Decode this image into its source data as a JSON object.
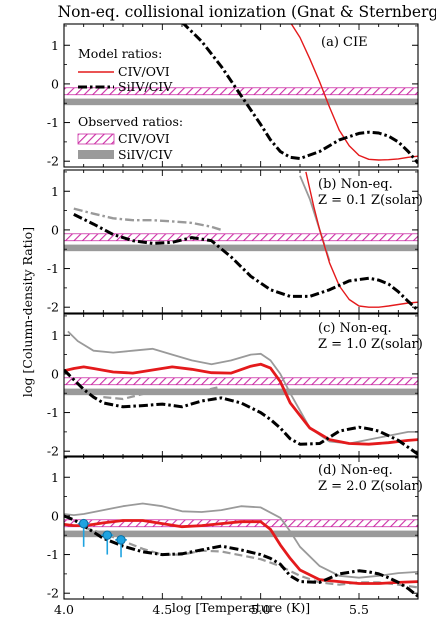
{
  "chart_data": {
    "type": "line",
    "title": "Non-eq. collisional ionization (Gnat & Sternberg)",
    "xlabel": "log [Temperature (K)]",
    "ylabel": "log [Column-density Ratio]",
    "xlim": [
      4.0,
      5.8
    ],
    "ylim": [
      -2.15,
      1.55
    ],
    "xticks": [
      "4.0",
      "4.5",
      "5.0",
      "5.5"
    ],
    "yticks": [
      "1",
      "0",
      "-1",
      "-2"
    ],
    "colors": {
      "civ_ovi": "#e41a1c",
      "siiv_civ": "#000000",
      "gray_model": "#9a9a9a",
      "band_hatch": "#cc2fa6",
      "band_gray": "#9a9a9a"
    },
    "legend": {
      "model_header": "Model ratios:",
      "model_entries": [
        "CIV/OVI",
        "SiIV/CIV"
      ],
      "observed_header": "Observed ratios:",
      "observed_entries": [
        "CIV/OVI",
        "SiIV/CIV"
      ],
      "placement": "upper-left of panel (a)"
    },
    "observed_bands": {
      "civ_ovi": [
        -0.28,
        -0.1
      ],
      "siiv_civ": [
        -0.55,
        -0.38
      ]
    },
    "panels": [
      {
        "label": "(a) CIE",
        "label2": "",
        "series": [
          {
            "name": "CIV/OVI",
            "style": "red-solid",
            "x": [
              5.15,
              5.2,
              5.25,
              5.3,
              5.35,
              5.4,
              5.45,
              5.5,
              5.55,
              5.6,
              5.65,
              5.7,
              5.75,
              5.8
            ],
            "y": [
              1.6,
              1.2,
              0.65,
              0.05,
              -0.6,
              -1.2,
              -1.6,
              -1.85,
              -1.95,
              -1.97,
              -1.96,
              -1.94,
              -1.9,
              -1.87
            ]
          },
          {
            "name": "SiIV/CIV",
            "style": "black-dashdot",
            "x": [
              4.6,
              4.7,
              4.8,
              4.9,
              5.0,
              5.05,
              5.1,
              5.15,
              5.2,
              5.3,
              5.4,
              5.5,
              5.55,
              5.6,
              5.65,
              5.7,
              5.75,
              5.8
            ],
            "y": [
              1.6,
              1.1,
              0.45,
              -0.3,
              -1.05,
              -1.45,
              -1.75,
              -1.9,
              -1.93,
              -1.75,
              -1.45,
              -1.28,
              -1.25,
              -1.27,
              -1.35,
              -1.5,
              -1.75,
              -2.05
            ]
          }
        ]
      },
      {
        "label": "(b) Non-eq.",
        "label2": "Z = 0.1 Z(solar)",
        "series": [
          {
            "name": "gray-solid",
            "style": "gray-solid",
            "x": [
              5.2,
              5.25,
              5.3,
              5.35
            ],
            "y": [
              1.4,
              0.8,
              0.0,
              -0.8
            ]
          },
          {
            "name": "gray-dashdot",
            "style": "gray-dashdot",
            "x": [
              4.05,
              4.15,
              4.25,
              4.35,
              4.45,
              4.55,
              4.65,
              4.75,
              4.8
            ],
            "y": [
              0.55,
              0.42,
              0.3,
              0.25,
              0.25,
              0.22,
              0.18,
              0.08,
              0.0
            ]
          },
          {
            "name": "CIV/OVI",
            "style": "red-solid",
            "x": [
              5.23,
              5.27,
              5.3,
              5.35,
              5.4,
              5.45,
              5.5,
              5.55,
              5.6,
              5.65,
              5.7,
              5.75,
              5.8
            ],
            "y": [
              1.5,
              0.6,
              0.0,
              -0.85,
              -1.45,
              -1.8,
              -1.97,
              -2.0,
              -2.0,
              -1.97,
              -1.93,
              -1.89,
              -1.87
            ]
          },
          {
            "name": "SiIV/CIV",
            "style": "black-dashdot",
            "x": [
              4.05,
              4.15,
              4.25,
              4.35,
              4.45,
              4.55,
              4.65,
              4.75,
              4.85,
              4.95,
              5.05,
              5.15,
              5.25,
              5.35,
              5.45,
              5.55,
              5.6,
              5.65,
              5.7,
              5.75,
              5.8
            ],
            "y": [
              0.4,
              0.15,
              -0.12,
              -0.28,
              -0.35,
              -0.32,
              -0.2,
              -0.28,
              -0.7,
              -1.2,
              -1.55,
              -1.72,
              -1.72,
              -1.55,
              -1.32,
              -1.25,
              -1.3,
              -1.4,
              -1.6,
              -1.85,
              -2.08
            ]
          }
        ]
      },
      {
        "label": "(c) Non-eq.",
        "label2": "Z = 1.0 Z(solar)",
        "series": [
          {
            "name": "gray-solid",
            "style": "gray-solid",
            "x": [
              4.02,
              4.07,
              4.15,
              4.25,
              4.35,
              4.45,
              4.55,
              4.65,
              4.75,
              4.85,
              4.95,
              5.0,
              5.05,
              5.1,
              5.15,
              5.25,
              5.35,
              5.45,
              5.55,
              5.65,
              5.75,
              5.8
            ],
            "y": [
              1.1,
              0.85,
              0.6,
              0.55,
              0.6,
              0.65,
              0.5,
              0.35,
              0.25,
              0.35,
              0.5,
              0.52,
              0.35,
              0.0,
              -0.5,
              -1.4,
              -1.75,
              -1.8,
              -1.7,
              -1.6,
              -1.5,
              -1.5
            ]
          },
          {
            "name": "gray-dashed",
            "style": "gray-dashed",
            "x": [
              4.2,
              4.3,
              4.4,
              4.5,
              4.6,
              4.7,
              4.78
            ],
            "y": [
              -0.6,
              -0.65,
              -0.52,
              -0.45,
              -0.5,
              -0.45,
              -0.35
            ]
          },
          {
            "name": "CIV/OVI",
            "style": "red-solid-thick",
            "x": [
              4.0,
              4.05,
              4.1,
              4.15,
              4.25,
              4.35,
              4.45,
              4.55,
              4.65,
              4.75,
              4.85,
              4.95,
              5.0,
              5.05,
              5.1,
              5.15,
              5.25,
              5.35,
              5.45,
              5.55,
              5.65,
              5.75,
              5.8
            ],
            "y": [
              0.08,
              0.14,
              0.18,
              0.14,
              0.05,
              0.02,
              0.1,
              0.18,
              0.12,
              0.03,
              0.02,
              0.2,
              0.25,
              0.15,
              -0.2,
              -0.75,
              -1.4,
              -1.7,
              -1.8,
              -1.82,
              -1.78,
              -1.72,
              -1.7
            ]
          },
          {
            "name": "SiIV/CIV",
            "style": "black-dashdot",
            "x": [
              4.0,
              4.05,
              4.1,
              4.15,
              4.2,
              4.3,
              4.4,
              4.5,
              4.6,
              4.7,
              4.8,
              4.9,
              5.0,
              5.05,
              5.1,
              5.15,
              5.2,
              5.3,
              5.4,
              5.5,
              5.55,
              5.6,
              5.65,
              5.7,
              5.75,
              5.8
            ],
            "y": [
              0.1,
              -0.15,
              -0.4,
              -0.6,
              -0.75,
              -0.85,
              -0.82,
              -0.78,
              -0.85,
              -0.7,
              -0.62,
              -0.75,
              -1.0,
              -1.18,
              -1.4,
              -1.68,
              -1.82,
              -1.8,
              -1.48,
              -1.38,
              -1.42,
              -1.48,
              -1.6,
              -1.72,
              -1.9,
              -2.08
            ]
          }
        ]
      },
      {
        "label": "(d) Non-eq.",
        "label2": "Z = 2.0 Z(solar)",
        "series": [
          {
            "name": "gray-solid",
            "style": "gray-solid",
            "x": [
              4.0,
              4.05,
              4.1,
              4.2,
              4.3,
              4.4,
              4.5,
              4.6,
              4.7,
              4.8,
              4.9,
              5.0,
              5.1,
              5.15,
              5.2,
              5.3,
              5.4,
              5.5,
              5.6,
              5.7,
              5.8
            ],
            "y": [
              0.05,
              0.02,
              0.05,
              0.15,
              0.25,
              0.32,
              0.25,
              0.12,
              0.1,
              0.15,
              0.25,
              0.22,
              -0.05,
              -0.4,
              -0.8,
              -1.3,
              -1.55,
              -1.6,
              -1.55,
              -1.48,
              -1.45
            ]
          },
          {
            "name": "gray-dashed",
            "style": "gray-dashed",
            "x": [
              4.1,
              4.2,
              4.3,
              4.4,
              4.5,
              4.6,
              4.7,
              4.8,
              4.9,
              5.0,
              5.1,
              5.2,
              5.3,
              5.4,
              5.5,
              5.6,
              5.7,
              5.8
            ],
            "y": [
              -0.3,
              -0.45,
              -0.65,
              -0.85,
              -1.0,
              -1.0,
              -0.9,
              -0.92,
              -1.02,
              -1.12,
              -1.3,
              -1.55,
              -1.72,
              -1.78,
              -1.72,
              -1.72,
              -1.78,
              -1.85
            ]
          },
          {
            "name": "CIV/OVI",
            "style": "red-solid-thick",
            "x": [
              4.0,
              4.05,
              4.1,
              4.15,
              4.2,
              4.3,
              4.4,
              4.5,
              4.6,
              4.7,
              4.8,
              4.9,
              5.0,
              5.05,
              5.1,
              5.15,
              5.2,
              5.3,
              5.4,
              5.5,
              5.6,
              5.7,
              5.8
            ],
            "y": [
              -0.22,
              -0.25,
              -0.25,
              -0.22,
              -0.18,
              -0.12,
              -0.12,
              -0.2,
              -0.28,
              -0.25,
              -0.2,
              -0.15,
              -0.15,
              -0.35,
              -0.75,
              -1.1,
              -1.4,
              -1.65,
              -1.7,
              -1.75,
              -1.75,
              -1.72,
              -1.7
            ]
          },
          {
            "name": "SiIV/CIV",
            "style": "black-dashdot",
            "x": [
              4.0,
              4.05,
              4.1,
              4.15,
              4.2,
              4.3,
              4.4,
              4.5,
              4.6,
              4.7,
              4.8,
              4.9,
              5.0,
              5.05,
              5.1,
              5.15,
              5.2,
              5.3,
              5.4,
              5.5,
              5.55,
              5.6,
              5.65,
              5.7,
              5.75,
              5.8
            ],
            "y": [
              0.0,
              -0.1,
              -0.25,
              -0.42,
              -0.58,
              -0.78,
              -0.93,
              -1.0,
              -0.98,
              -0.88,
              -0.78,
              -0.88,
              -1.0,
              -1.1,
              -1.25,
              -1.55,
              -1.7,
              -1.72,
              -1.5,
              -1.42,
              -1.45,
              -1.5,
              -1.6,
              -1.72,
              -1.88,
              -2.08
            ]
          }
        ],
        "observations": [
          {
            "x": 4.1,
            "y": -0.2,
            "yerr_low": 0.6,
            "yerr_high": 0.12,
            "xerr": 0.03
          },
          {
            "x": 4.22,
            "y": -0.5,
            "yerr_low": 0.5,
            "yerr_high": 0.12,
            "xerr": 0.03
          },
          {
            "x": 4.29,
            "y": -0.62,
            "yerr_low": 0.45,
            "yerr_high": 0.12,
            "xerr": 0.03
          }
        ]
      }
    ]
  }
}
